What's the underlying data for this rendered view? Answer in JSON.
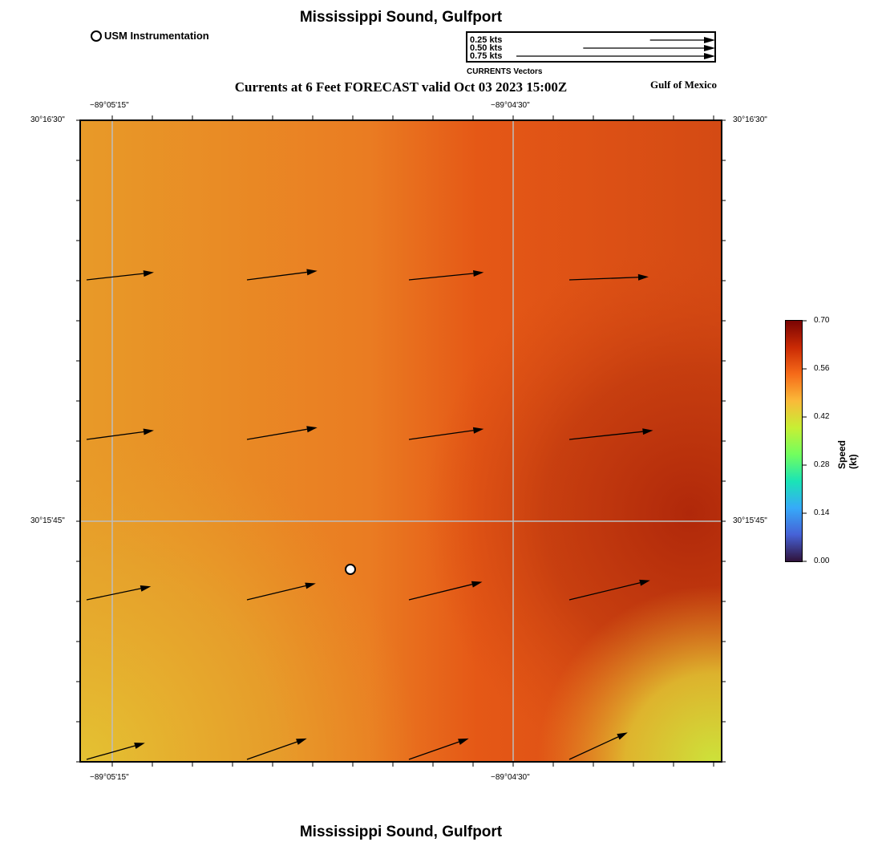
{
  "header": {
    "title": "Mississippi Sound, Gulfport",
    "subtitle": "Currents at 6 Feet FORECAST valid Oct 03 2023 15:00Z",
    "region": "Gulf of Mexico",
    "station_legend": "USM Instrumentation"
  },
  "footer": {
    "title": "Mississippi Sound, Gulfport"
  },
  "vector_scale": {
    "caption": "CURRENTS Vectors",
    "entries": [
      {
        "label": "0.25 kts",
        "speed": 0.25
      },
      {
        "label": "0.50 kts",
        "speed": 0.5
      },
      {
        "label": "0.75 kts",
        "speed": 0.75
      }
    ]
  },
  "axes": {
    "top": [
      "−89°05'15\"",
      "−89°04'30\""
    ],
    "bottom": [
      "−89°05'15\"",
      "−89°04'30\""
    ],
    "left": [
      "30°16'30\"",
      "30°15'45\""
    ],
    "right": [
      "30°16'30\"",
      "30°15'45\""
    ]
  },
  "colorbar": {
    "title": "Speed (kt)",
    "ticks": [
      "0.70",
      "0.56",
      "0.42",
      "0.28",
      "0.14",
      "0.00"
    ],
    "min": 0.0,
    "max": 0.7,
    "colors": [
      "#30123b",
      "#4662d7",
      "#36aaf9",
      "#1ae4b6",
      "#72fe5e",
      "#c7ef34",
      "#faba39",
      "#f66b19",
      "#ca2a04",
      "#7a0403"
    ]
  },
  "currents": [
    {
      "row": 1,
      "col": 1,
      "u": 0.45,
      "v": 0.05
    },
    {
      "row": 1,
      "col": 2,
      "u": 0.47,
      "v": 0.06
    },
    {
      "row": 1,
      "col": 3,
      "u": 0.5,
      "v": 0.05
    },
    {
      "row": 1,
      "col": 4,
      "u": 0.53,
      "v": 0.02
    },
    {
      "row": 2,
      "col": 1,
      "u": 0.45,
      "v": 0.06
    },
    {
      "row": 2,
      "col": 2,
      "u": 0.47,
      "v": 0.08
    },
    {
      "row": 2,
      "col": 3,
      "u": 0.5,
      "v": 0.07
    },
    {
      "row": 2,
      "col": 4,
      "u": 0.56,
      "v": 0.06
    },
    {
      "row": 3,
      "col": 1,
      "u": 0.43,
      "v": 0.09
    },
    {
      "row": 3,
      "col": 2,
      "u": 0.46,
      "v": 0.11
    },
    {
      "row": 3,
      "col": 3,
      "u": 0.49,
      "v": 0.12
    },
    {
      "row": 3,
      "col": 4,
      "u": 0.54,
      "v": 0.13
    },
    {
      "row": 4,
      "col": 1,
      "u": 0.39,
      "v": 0.11
    },
    {
      "row": 4,
      "col": 2,
      "u": 0.4,
      "v": 0.14
    },
    {
      "row": 4,
      "col": 3,
      "u": 0.4,
      "v": 0.14
    },
    {
      "row": 4,
      "col": 4,
      "u": 0.39,
      "v": 0.18
    }
  ],
  "station": {
    "name": "USM Instrumentation"
  }
}
